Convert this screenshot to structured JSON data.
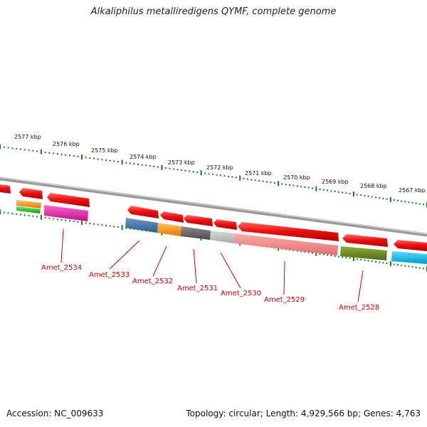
{
  "header": {
    "title": "Alkaliphilus metalliredigens QYMF, complete genome"
  },
  "footer": {
    "accession": "Accession: NC_009633",
    "summary": "Topology: circular; Length: 4,929,566 bp; Genes: 4,763"
  },
  "colors": {
    "backbone": "#8a8a8a",
    "tick": "#1a7a1a",
    "label": "#cc0000",
    "gene_red": "#ee1111"
  },
  "scale": {
    "labels": [
      "2577 kbp",
      "2576 kbp",
      "2575 kbp",
      "2574 kbp",
      "2573 kbp",
      "2572 kbp",
      "2571 kbp",
      "2570 kbp",
      "2569 kbp",
      "2568 kbp",
      "2567 kbp"
    ]
  },
  "genes": {
    "labels": [
      "Amet_2534",
      "Amet_2533",
      "Amet_2532",
      "Amet_2531",
      "Amet_2530",
      "Amet_2529",
      "Amet_2528"
    ]
  }
}
